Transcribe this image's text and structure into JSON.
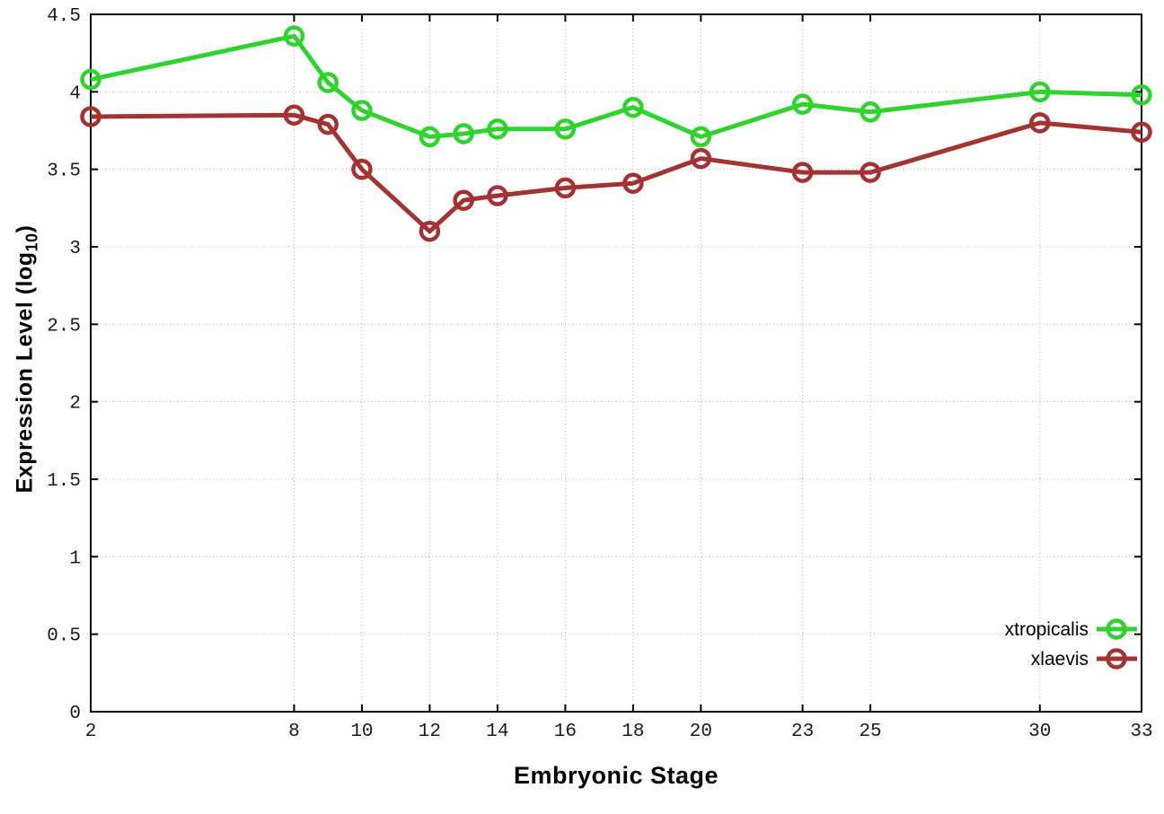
{
  "page": {
    "background": "#ffffff"
  },
  "axes": {
    "x_title": "Embryonic Stage",
    "y_title_prefix": "Expression Level (log",
    "y_title_sub": "10",
    "y_title_suffix": ")"
  },
  "chart_data": {
    "type": "line",
    "title": "",
    "xlabel": "Embryonic Stage",
    "ylabel": "Expression Level (log10)",
    "x": [
      2,
      8,
      9,
      10,
      12,
      13,
      14,
      16,
      18,
      20,
      23,
      25,
      30,
      33
    ],
    "series": [
      {
        "name": "xtropicalis",
        "color": "#2ed32e",
        "values": [
          4.08,
          4.36,
          4.06,
          3.88,
          3.71,
          3.73,
          3.76,
          3.76,
          3.9,
          3.71,
          3.92,
          3.87,
          4.0,
          3.98
        ]
      },
      {
        "name": "xlaevis",
        "color": "#a53232",
        "values": [
          3.84,
          3.85,
          3.79,
          3.5,
          3.1,
          3.3,
          3.33,
          3.38,
          3.41,
          3.57,
          3.48,
          3.48,
          3.8,
          3.74
        ]
      }
    ],
    "xlim": [
      2,
      33
    ],
    "ylim": [
      0,
      4.5
    ],
    "x_ticks": [
      2,
      8,
      10,
      12,
      14,
      16,
      18,
      20,
      23,
      25,
      30,
      33
    ],
    "x_tick_labels": [
      "2",
      "8",
      "10",
      "12",
      "14",
      "16",
      "18",
      "20",
      "23",
      "25",
      "30",
      "33"
    ],
    "y_ticks": [
      0,
      0.5,
      1,
      1.5,
      2,
      2.5,
      3,
      3.5,
      4,
      4.5
    ],
    "y_tick_labels": [
      "0",
      "0.5",
      "1",
      "1.5",
      "2",
      "2.5",
      "3",
      "3.5",
      "4",
      "4.5"
    ],
    "grid": true,
    "legend_position": "bottom-right",
    "marker": "open-circle",
    "line_width": 5,
    "colors": {
      "border": "#000000",
      "grid": "#b0b0b0",
      "tick_text": "#1a1a1a",
      "legend_text": "#000000"
    }
  }
}
